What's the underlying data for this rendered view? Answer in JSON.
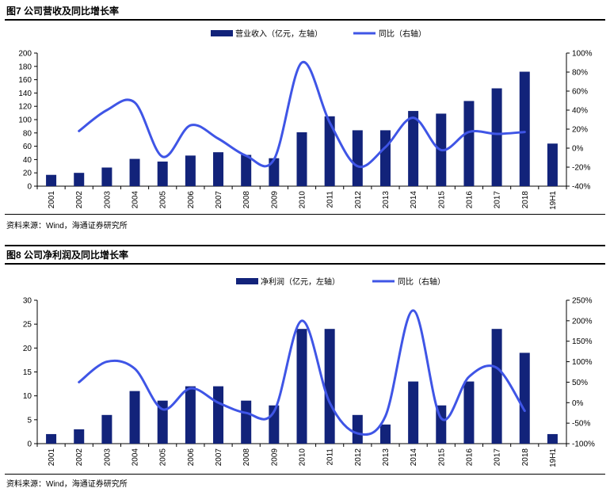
{
  "figures": [
    {
      "title": "图7  公司营收及同比增长率",
      "source": "资料来源：Wind，海通证券研究所"
    },
    {
      "title": "图8  公司净利润及同比增长率",
      "source": "资料来源：Wind，海通证券研究所"
    }
  ],
  "colors": {
    "bar": "#12237a",
    "line": "#3f55e6",
    "axis": "#000000"
  },
  "chart_data": [
    {
      "type": "bar",
      "categories": [
        "2001",
        "2002",
        "2003",
        "2004",
        "2005",
        "2006",
        "2007",
        "2008",
        "2009",
        "2010",
        "2011",
        "2012",
        "2013",
        "2014",
        "2015",
        "2016",
        "2017",
        "2018",
        "19H1"
      ],
      "series": [
        {
          "name": "营业收入（亿元，左轴）",
          "type": "bar",
          "axis": "left",
          "values": [
            17,
            20,
            28,
            41,
            37,
            46,
            51,
            47,
            42,
            81,
            105,
            84,
            84,
            113,
            109,
            128,
            147,
            172,
            64
          ]
        },
        {
          "name": "同比（右轴）",
          "type": "line",
          "axis": "right",
          "values": [
            null,
            18,
            40,
            48,
            -9,
            24,
            10,
            -8,
            -12,
            90,
            27,
            -19,
            1,
            32,
            -2,
            17,
            15,
            17,
            null
          ]
        }
      ],
      "ylim": [
        0,
        200
      ],
      "yticks": [
        0,
        20,
        40,
        60,
        80,
        100,
        120,
        140,
        160,
        180,
        200
      ],
      "y2lim": [
        -40,
        100
      ],
      "y2ticks": [
        "-40%",
        "-20%",
        "0%",
        "20%",
        "40%",
        "60%",
        "80%",
        "100%"
      ],
      "legend_position": "top-center"
    },
    {
      "type": "bar",
      "categories": [
        "2001",
        "2002",
        "2003",
        "2004",
        "2005",
        "2006",
        "2007",
        "2008",
        "2009",
        "2010",
        "2011",
        "2012",
        "2013",
        "2014",
        "2015",
        "2016",
        "2017",
        "2018",
        "19H1"
      ],
      "series": [
        {
          "name": "净利润（亿元，左轴）",
          "type": "bar",
          "axis": "left",
          "values": [
            2,
            3,
            6,
            11,
            9,
            12,
            12,
            9,
            8,
            24,
            24,
            6,
            4,
            13,
            8,
            13,
            24,
            19,
            2
          ]
        },
        {
          "name": "同比（右轴）",
          "type": "line",
          "axis": "right",
          "values": [
            null,
            50,
            100,
            83,
            -16,
            35,
            0,
            -25,
            -22,
            200,
            0,
            -75,
            -33,
            225,
            -38,
            63,
            85,
            -20,
            null
          ]
        }
      ],
      "ylim": [
        0,
        30
      ],
      "yticks": [
        0,
        5,
        10,
        15,
        20,
        25,
        30
      ],
      "y2lim": [
        -100,
        250
      ],
      "y2ticks": [
        "-100%",
        "-50%",
        "0%",
        "50%",
        "100%",
        "150%",
        "200%",
        "250%"
      ],
      "legend_position": "top-center"
    }
  ]
}
